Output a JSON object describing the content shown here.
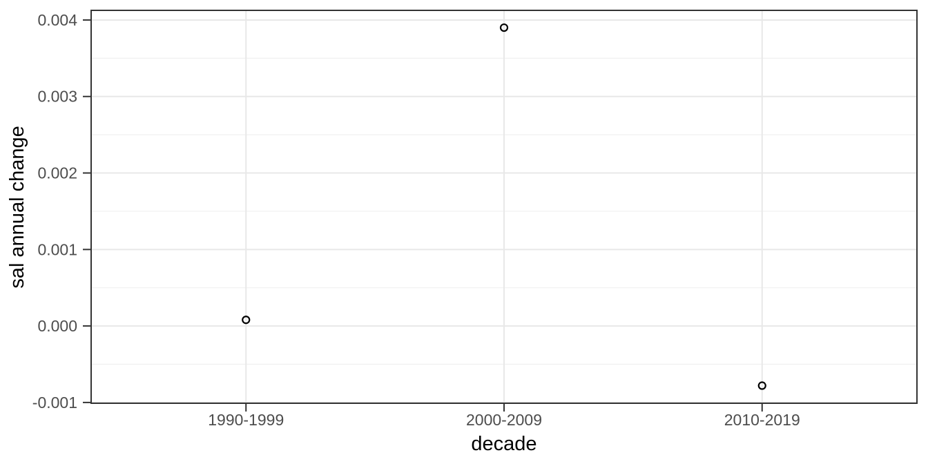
{
  "chart_data": {
    "type": "scatter",
    "title": "",
    "xlabel": "decade",
    "ylabel": "sal annual change",
    "categories": [
      "1990-1999",
      "2000-2009",
      "2010-2019"
    ],
    "values": [
      8e-05,
      0.0039,
      -0.00078
    ],
    "ylim": [
      -0.00101,
      0.004126
    ],
    "y_major_ticks": [
      0.004,
      0.003,
      0.002,
      0.001,
      0.0,
      -0.001
    ],
    "y_tick_labels": [
      "0.004",
      "0.003",
      "0.002",
      "0.001",
      "0.000",
      "-0.001"
    ],
    "y_minor_ticks": [
      0.0035,
      0.0025,
      0.0015,
      0.0005,
      -0.0005
    ],
    "grid": true,
    "legend_position": "none",
    "marker": "open-circle",
    "theme": "ggplot-theme-bw",
    "colors": {
      "background": "#ffffff",
      "panel_background": "#ffffff",
      "panel_border": "#333333",
      "grid_major": "#e8e8e8",
      "grid_minor": "#f0f0f0",
      "tick_mark": "#333333",
      "axis_text": "#4d4d4d",
      "axis_title": "#000000",
      "point_stroke": "#000000"
    }
  }
}
